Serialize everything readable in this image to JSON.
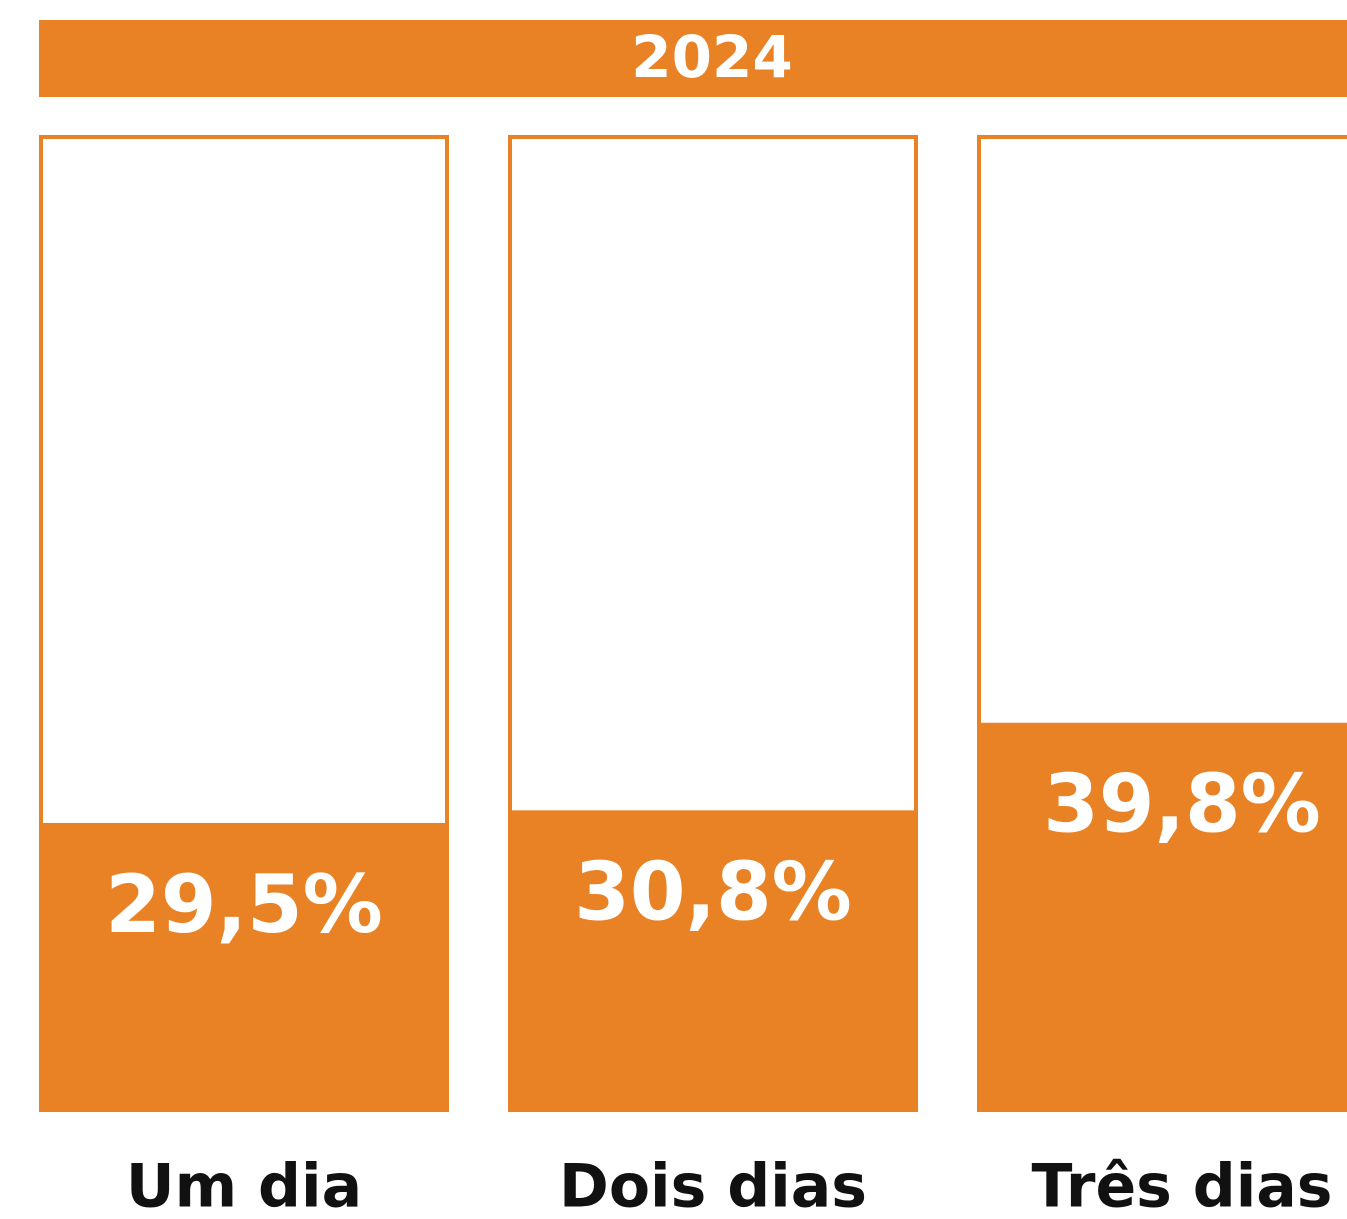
{
  "chart_data": {
    "type": "bar",
    "title": "2024",
    "categories": [
      "Um dia",
      "Dois dias",
      "Três dias"
    ],
    "values": [
      29.5,
      30.8,
      39.8
    ],
    "value_labels": [
      "29,5%",
      "30,8%",
      "39,8%"
    ],
    "color": "#e88225",
    "ylim": [
      0,
      100
    ]
  }
}
